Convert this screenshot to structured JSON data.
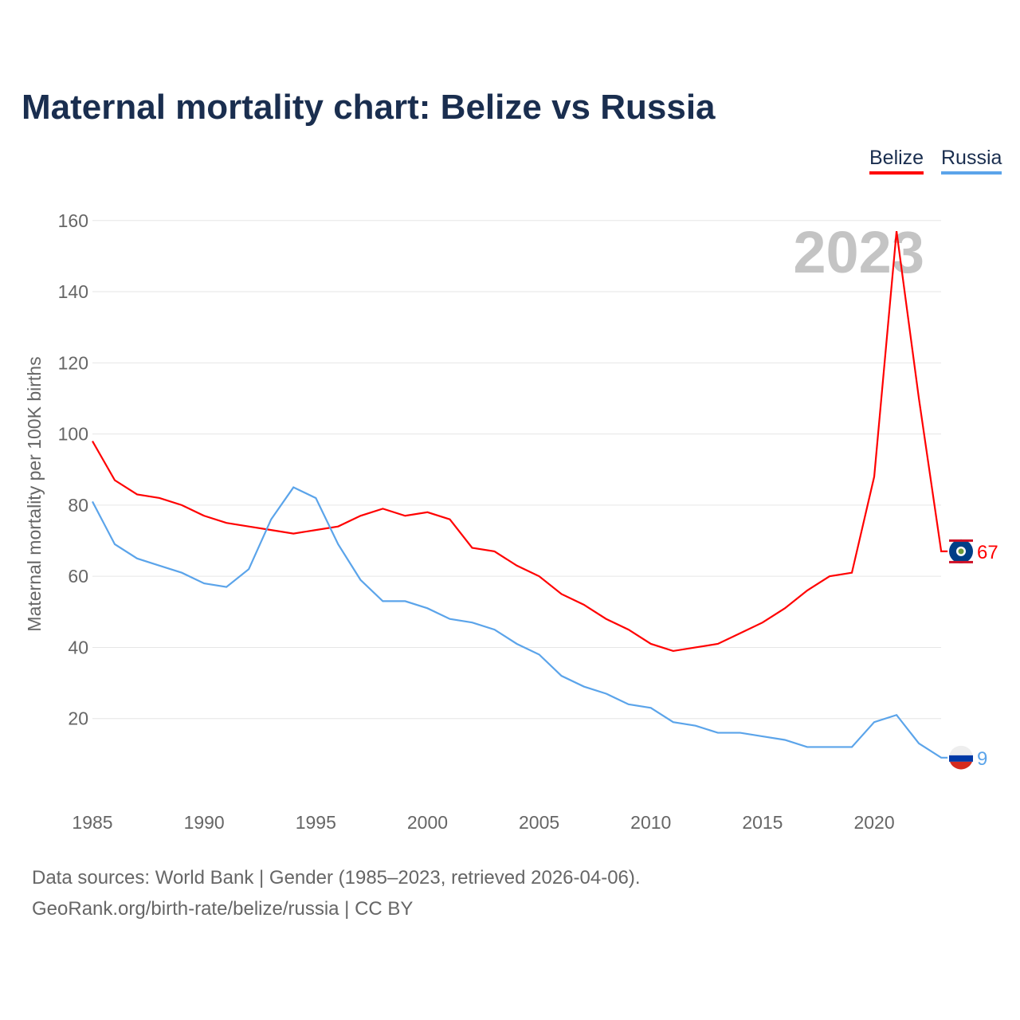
{
  "title": "Maternal mortality chart: Belize vs Russia",
  "chart_data": {
    "type": "line",
    "title": "Maternal mortality chart: Belize vs Russia",
    "ylabel": "Maternal mortality per 100K births",
    "xlabel": "",
    "ylim": [
      0,
      165
    ],
    "xlim": [
      1985,
      2023
    ],
    "yticks": [
      20,
      40,
      60,
      80,
      100,
      120,
      140,
      160
    ],
    "xticks": [
      1985,
      1990,
      1995,
      2000,
      2005,
      2010,
      2015,
      2020
    ],
    "year_label": "2023",
    "legend": "top-right",
    "x": [
      1985,
      1986,
      1987,
      1988,
      1989,
      1990,
      1991,
      1992,
      1993,
      1994,
      1995,
      1996,
      1997,
      1998,
      1999,
      2000,
      2001,
      2002,
      2003,
      2004,
      2005,
      2006,
      2007,
      2008,
      2009,
      2010,
      2011,
      2012,
      2013,
      2014,
      2015,
      2016,
      2017,
      2018,
      2019,
      2020,
      2021,
      2022,
      2023
    ],
    "series": [
      {
        "name": "Belize",
        "color": "#ff0000",
        "end_label": "67",
        "values": [
          98,
          87,
          83,
          82,
          80,
          77,
          75,
          74,
          73,
          72,
          73,
          74,
          77,
          79,
          77,
          78,
          76,
          68,
          67,
          63,
          60,
          55,
          52,
          48,
          45,
          41,
          39,
          40,
          41,
          44,
          47,
          51,
          56,
          60,
          61,
          88,
          157,
          110,
          67
        ]
      },
      {
        "name": "Russia",
        "color": "#5ba4ea",
        "end_label": "9",
        "values": [
          81,
          69,
          65,
          63,
          61,
          58,
          57,
          62,
          76,
          85,
          82,
          69,
          59,
          53,
          53,
          51,
          48,
          47,
          45,
          41,
          38,
          32,
          29,
          27,
          24,
          23,
          19,
          18,
          16,
          16,
          15,
          14,
          12,
          12,
          12,
          19,
          21,
          13,
          9
        ]
      }
    ]
  },
  "footer": {
    "line1": "Data sources: World Bank | Gender (1985–2023, retrieved 2026-04-06).",
    "line2": "GeoRank.org/birth-rate/belize/russia | CC BY"
  }
}
